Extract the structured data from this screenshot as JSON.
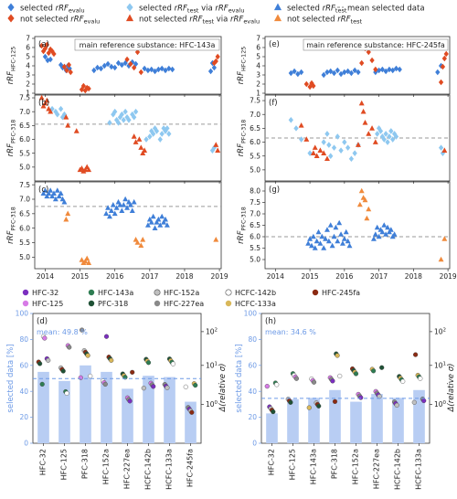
{
  "colors": {
    "blue_dark": "#3f7fd8",
    "blue_light": "#8ec8f0",
    "red": "#e04b22",
    "orange": "#f08a3c",
    "dash": "#9a9a9a",
    "bar": "#b8cdf3",
    "bar_mean": "#6d9ae6"
  },
  "legend": [
    {
      "marker": "diamond",
      "color": "#3f7fd8",
      "label": "selected rRF_evalu"
    },
    {
      "marker": "diamond",
      "color": "#e04b22",
      "label": "not selected rRF_evalu"
    },
    {
      "marker": "diamond",
      "color": "#8ec8f0",
      "label": "selected rRF_test via rRF_evalu"
    },
    {
      "marker": "triangle",
      "color": "#e04b22",
      "label": "not selected rRF_test via rRF_evalu"
    },
    {
      "marker": "triangle",
      "color": "#3f7fd8",
      "label": "selected rRF_test"
    },
    {
      "marker": "triangle",
      "color": "#f08a3c",
      "label": "not selected rRF_test"
    },
    {
      "marker": "dash",
      "color": "#9a9a9a",
      "label": "mean selected data"
    }
  ],
  "ts_xticks": [
    "2014",
    "2015",
    "2016",
    "2017",
    "2018",
    "2019"
  ],
  "chart_data": [
    {
      "panel": "a",
      "type": "scatter",
      "annotation": "main reference substance: HFC-143a",
      "ylabel": "rRF_HFC-125",
      "ylim": [
        0.9,
        7.2
      ],
      "yticks": [
        1,
        2,
        3,
        4,
        5,
        6,
        7
      ],
      "xlim": [
        2013.7,
        2019.05
      ],
      "series": [
        {
          "name": "selected rRF_evalu",
          "marker": "diamond",
          "color": "blue_dark",
          "x": [
            2014.0,
            2014.07,
            2014.15,
            2014.45,
            2014.5,
            2014.55,
            2014.6,
            2014.65,
            2014.7,
            2015.4,
            2015.5,
            2015.6,
            2015.7,
            2015.8,
            2015.9,
            2016.0,
            2016.1,
            2016.2,
            2016.3,
            2016.4,
            2016.5,
            2016.6,
            2016.85,
            2016.95,
            2017.05,
            2017.15,
            2017.25,
            2017.35,
            2017.45,
            2017.55,
            2017.65,
            2018.75,
            2018.8,
            2018.85
          ],
          "y": [
            5.0,
            4.6,
            4.7,
            4.1,
            3.8,
            3.9,
            3.5,
            4.0,
            3.7,
            3.5,
            3.8,
            3.7,
            4.0,
            4.2,
            3.9,
            3.8,
            4.3,
            4.1,
            4.3,
            4.0,
            4.4,
            4.2,
            3.7,
            3.5,
            3.6,
            3.4,
            3.6,
            3.7,
            3.5,
            3.7,
            3.6,
            3.4,
            4.3,
            3.8
          ]
        },
        {
          "name": "not selected rRF_evalu",
          "marker": "diamond",
          "color": "red",
          "x": [
            2013.9,
            2013.95,
            2014.0,
            2014.05,
            2014.1,
            2014.15,
            2014.2,
            2014.25,
            2014.55,
            2014.62,
            2014.68,
            2014.73,
            2015.05,
            2015.1,
            2015.15,
            2015.2,
            2015.25,
            2016.35,
            2016.45,
            2016.55,
            2016.65,
            2016.75,
            2018.85,
            2018.9,
            2018.95
          ],
          "y": [
            6.2,
            5.6,
            5.9,
            6.3,
            5.4,
            5.8,
            5.6,
            5.3,
            3.9,
            3.5,
            4.1,
            3.3,
            1.4,
            1.8,
            1.3,
            1.6,
            1.5,
            4.7,
            4.2,
            3.8,
            5.5,
            3.3,
            4.3,
            4.5,
            5.0
          ]
        }
      ]
    },
    {
      "panel": "b",
      "type": "scatter",
      "ylabel": "rRF_PFC-318",
      "ylim": [
        4.5,
        7.6
      ],
      "yticks": [
        5.0,
        5.5,
        6.0,
        6.5,
        7.0,
        7.5
      ],
      "xlim": [
        2013.7,
        2019.05
      ],
      "mean": 6.55,
      "series": [
        {
          "name": "selected rRF_test via rRF_evalu",
          "marker": "diamond",
          "color": "blue_light",
          "x": [
            2014.2,
            2014.3,
            2014.35,
            2014.45,
            2014.5,
            2014.55,
            2015.85,
            2015.95,
            2016.0,
            2016.05,
            2016.1,
            2016.15,
            2016.2,
            2016.25,
            2016.3,
            2016.35,
            2016.4,
            2016.5,
            2016.55,
            2016.6,
            2016.9,
            2017.0,
            2017.05,
            2017.1,
            2017.15,
            2017.2,
            2017.3,
            2017.35,
            2017.4,
            2017.45,
            2017.5,
            2017.55,
            2018.8,
            2018.85
          ],
          "y": [
            7.1,
            7.0,
            6.9,
            7.1,
            6.8,
            6.9,
            6.6,
            6.9,
            7.0,
            6.7,
            6.6,
            6.8,
            6.9,
            6.7,
            7.0,
            6.8,
            6.7,
            6.9,
            6.8,
            7.0,
            6.0,
            6.1,
            6.3,
            6.2,
            6.4,
            6.3,
            6.0,
            6.2,
            6.4,
            6.3,
            6.4,
            6.2,
            5.6,
            5.7
          ]
        },
        {
          "name": "not selected rRF_test via rRF_evalu",
          "marker": "triangle",
          "color": "red",
          "x": [
            2013.9,
            2013.95,
            2014.0,
            2014.05,
            2014.1,
            2014.15,
            2014.6,
            2014.65,
            2014.9,
            2015.0,
            2015.05,
            2015.1,
            2015.15,
            2015.2,
            2015.25,
            2016.55,
            2016.6,
            2016.7,
            2016.75,
            2016.8,
            2016.85,
            2018.9,
            2018.95
          ],
          "y": [
            7.5,
            7.2,
            7.3,
            7.4,
            7.1,
            7.0,
            6.8,
            6.5,
            6.3,
            4.9,
            4.95,
            4.85,
            4.9,
            5.0,
            4.9,
            6.1,
            5.9,
            6.0,
            5.7,
            5.5,
            5.6,
            5.8,
            5.6
          ]
        }
      ]
    },
    {
      "panel": "c",
      "type": "scatter",
      "ylabel": "rRF_PFC-318",
      "ylim": [
        4.6,
        7.6
      ],
      "yticks": [
        5.0,
        5.5,
        6.0,
        6.5,
        7.0,
        7.5
      ],
      "xlim": [
        2013.7,
        2019.05
      ],
      "mean": 6.75,
      "series": [
        {
          "name": "selected rRF_test",
          "marker": "triangle",
          "color": "blue_dark",
          "x": [
            2013.95,
            2014.0,
            2014.05,
            2014.1,
            2014.15,
            2014.2,
            2014.25,
            2014.3,
            2014.35,
            2014.4,
            2014.45,
            2014.5,
            2014.55,
            2015.75,
            2015.8,
            2015.85,
            2015.9,
            2015.95,
            2016.0,
            2016.05,
            2016.1,
            2016.15,
            2016.2,
            2016.25,
            2016.3,
            2016.35,
            2016.4,
            2016.45,
            2016.5,
            2016.55,
            2016.95,
            2017.0,
            2017.05,
            2017.1,
            2017.15,
            2017.2,
            2017.25,
            2017.3,
            2017.35,
            2017.4,
            2017.45,
            2017.5
          ],
          "y": [
            7.2,
            7.3,
            7.1,
            7.2,
            7.3,
            7.1,
            7.2,
            7.0,
            7.3,
            7.1,
            7.2,
            7.0,
            6.9,
            6.5,
            6.7,
            6.4,
            6.6,
            6.8,
            6.5,
            6.7,
            6.9,
            6.8,
            6.6,
            6.8,
            7.0,
            6.7,
            6.9,
            6.8,
            6.6,
            6.9,
            6.1,
            6.3,
            6.2,
            6.4,
            6.0,
            6.2,
            6.3,
            6.1,
            6.4,
            6.2,
            6.3,
            6.1
          ]
        },
        {
          "name": "not selected rRF_test",
          "marker": "triangle",
          "color": "orange",
          "x": [
            2014.6,
            2014.65,
            2015.05,
            2015.1,
            2015.15,
            2015.2,
            2015.25,
            2016.6,
            2016.65,
            2016.75,
            2016.8,
            2018.9
          ],
          "y": [
            6.3,
            6.5,
            4.9,
            4.8,
            4.85,
            4.95,
            4.8,
            5.6,
            5.5,
            5.4,
            5.6,
            5.6
          ]
        }
      ]
    },
    {
      "panel": "e",
      "type": "scatter",
      "annotation": "main reference substance: HFC-245fa",
      "ylabel": "rRF_HFC-125",
      "ylim": [
        0.9,
        7.2
      ],
      "yticks": [
        1,
        2,
        3,
        4,
        5,
        6,
        7
      ],
      "xlim": [
        2013.7,
        2019.05
      ],
      "series": [
        {
          "name": "selected rRF_evalu",
          "marker": "diamond",
          "color": "blue_dark",
          "x": [
            2014.45,
            2014.55,
            2014.65,
            2014.75,
            2015.4,
            2015.5,
            2015.6,
            2015.7,
            2015.8,
            2015.9,
            2016.0,
            2016.1,
            2016.2,
            2016.3,
            2016.4,
            2016.9,
            2017.0,
            2017.1,
            2017.2,
            2017.3,
            2017.4,
            2017.5,
            2017.6,
            2018.7,
            2018.8
          ],
          "y": [
            3.2,
            3.4,
            3.1,
            3.3,
            3.0,
            3.3,
            3.4,
            3.2,
            3.5,
            3.1,
            3.3,
            3.4,
            3.2,
            3.5,
            3.3,
            3.3,
            3.5,
            3.6,
            3.4,
            3.6,
            3.5,
            3.7,
            3.6,
            3.3,
            4.0
          ]
        },
        {
          "name": "not selected rRF_evalu",
          "marker": "diamond",
          "color": "red",
          "x": [
            2014.9,
            2015.0,
            2015.05,
            2015.1,
            2016.5,
            2016.6,
            2016.7,
            2016.8,
            2016.9,
            2018.8,
            2018.85,
            2018.9,
            2018.95
          ],
          "y": [
            2.0,
            1.7,
            2.1,
            1.8,
            4.3,
            5.9,
            5.5,
            4.6,
            3.6,
            2.2,
            3.9,
            4.8,
            5.3
          ]
        }
      ]
    },
    {
      "panel": "f",
      "type": "scatter",
      "ylabel": "rRF_PFC-318",
      "ylim": [
        4.6,
        7.7
      ],
      "yticks": [
        5.0,
        5.5,
        6.0,
        6.5,
        7.0,
        7.5
      ],
      "xlim": [
        2013.7,
        2019.05
      ],
      "mean": 6.15,
      "series": [
        {
          "name": "selected rRF_test via rRF_evalu",
          "marker": "diamond",
          "color": "blue_light",
          "x": [
            2014.45,
            2014.6,
            2014.75,
            2015.0,
            2015.4,
            2015.5,
            2015.55,
            2015.6,
            2015.7,
            2015.8,
            2015.9,
            2016.0,
            2016.1,
            2016.2,
            2016.3,
            2016.4,
            2016.95,
            2017.0,
            2017.05,
            2017.1,
            2017.15,
            2017.2,
            2017.25,
            2017.3,
            2017.35,
            2017.4,
            2017.45,
            2017.5,
            2018.8,
            2018.85
          ],
          "y": [
            6.8,
            6.5,
            6.1,
            5.6,
            6.0,
            6.3,
            5.9,
            5.5,
            5.8,
            6.2,
            5.7,
            6.0,
            5.8,
            5.4,
            5.6,
            5.9,
            6.3,
            6.5,
            6.4,
            6.2,
            6.1,
            6.3,
            6.0,
            6.2,
            6.4,
            6.1,
            6.3,
            6.2,
            5.8,
            5.6
          ]
        },
        {
          "name": "not selected rRF_test via rRF_evalu",
          "marker": "triangle",
          "color": "red",
          "x": [
            2014.75,
            2014.9,
            2015.1,
            2015.15,
            2015.2,
            2015.3,
            2015.4,
            2015.5,
            2016.4,
            2016.5,
            2016.55,
            2016.6,
            2016.7,
            2016.8,
            2016.9,
            2018.9
          ],
          "y": [
            6.6,
            6.1,
            5.6,
            5.8,
            5.5,
            5.7,
            5.6,
            5.4,
            5.9,
            7.4,
            7.1,
            6.7,
            6.3,
            6.5,
            6.0,
            5.7
          ]
        }
      ]
    },
    {
      "panel": "g",
      "type": "scatter",
      "ylabel": "rRF_PFC-318",
      "ylim": [
        4.6,
        8.4
      ],
      "yticks": [
        5.0,
        5.5,
        6.0,
        6.5,
        7.0,
        7.5,
        8.0
      ],
      "xlim": [
        2013.7,
        2019.05
      ],
      "mean": 6.0,
      "series": [
        {
          "name": "selected rRF_test",
          "marker": "triangle",
          "color": "blue_dark",
          "x": [
            2014.95,
            2015.0,
            2015.05,
            2015.1,
            2015.15,
            2015.2,
            2015.25,
            2015.3,
            2015.35,
            2015.4,
            2015.45,
            2015.5,
            2015.55,
            2015.6,
            2015.65,
            2015.7,
            2015.75,
            2015.8,
            2015.85,
            2015.9,
            2015.95,
            2016.0,
            2016.05,
            2016.1,
            2016.15,
            2016.85,
            2016.9,
            2016.95,
            2017.0,
            2017.05,
            2017.1,
            2017.15,
            2017.2,
            2017.25,
            2017.3,
            2017.35,
            2017.4,
            2017.45
          ],
          "y": [
            5.7,
            5.9,
            5.6,
            6.0,
            5.5,
            5.8,
            6.2,
            5.7,
            6.0,
            5.5,
            5.9,
            6.3,
            5.8,
            6.5,
            5.6,
            6.0,
            6.4,
            5.8,
            6.6,
            6.1,
            5.7,
            5.9,
            6.2,
            5.8,
            5.6,
            5.9,
            6.1,
            6.4,
            6.0,
            6.3,
            6.2,
            6.5,
            6.1,
            6.4,
            6.2,
            6.3,
            6.0,
            6.1
          ]
        },
        {
          "name": "not selected rRF_test",
          "marker": "triangle",
          "color": "orange",
          "x": [
            2016.45,
            2016.5,
            2016.55,
            2016.6,
            2016.65,
            2016.7,
            2018.8,
            2018.9
          ],
          "y": [
            7.4,
            8.0,
            7.7,
            7.6,
            6.8,
            7.2,
            5.0,
            5.9
          ]
        }
      ]
    },
    {
      "panel": "d",
      "type": "bar",
      "ylabel": "selected data [%]",
      "ylabel2": "Δ(relative σ)",
      "mean_label": "mean:  49.8 %",
      "mean": 49.8,
      "ylim": [
        0,
        100
      ],
      "yticks": [
        0,
        20,
        40,
        60,
        80,
        100
      ],
      "categories": [
        "HFC-32",
        "HFC-125",
        "PFC-318",
        "HFC-152a",
        "HFC-227ea",
        "HCFC-142b",
        "HCFC-133a",
        "HFC-245fa"
      ],
      "values": [
        55,
        48,
        60,
        55,
        42,
        52,
        51,
        32
      ]
    },
    {
      "panel": "h",
      "type": "bar",
      "ylabel": "selected data [%]",
      "ylabel2": "Δ(relative σ)",
      "mean_label": "mean:  34.6 %",
      "mean": 34.6,
      "ylim": [
        0,
        100
      ],
      "yticks": [
        0,
        20,
        40,
        60,
        80,
        100
      ],
      "categories": [
        "HFC-32",
        "HFC-125",
        "HFC-143a",
        "PFC-318",
        "HFC-152a",
        "HFC-227ea",
        "HCFC-142b",
        "HCFC-133a"
      ],
      "values": [
        23,
        34,
        35,
        41,
        32,
        38,
        35,
        41
      ]
    }
  ],
  "bar_legend": [
    {
      "label": "HFC-32",
      "color": "#7b2fbf",
      "ring": false
    },
    {
      "label": "HFC-143a",
      "color": "#2e7d52",
      "ring": false
    },
    {
      "label": "HFC-152a",
      "color": "#c0c0c0",
      "ring": true
    },
    {
      "label": "HCFC-142b",
      "color": "#ffffff",
      "ring": true
    },
    {
      "label": "HFC-245fa",
      "color": "#8b2a12",
      "ring": false
    },
    {
      "label": "HFC-125",
      "color": "#d77be6",
      "ring": false
    },
    {
      "label": "PFC-318",
      "color": "#1f5135",
      "ring": false
    },
    {
      "label": "HFC-227ea",
      "color": "#8a8a8a",
      "ring": false
    },
    {
      "label": "HCFC-133a",
      "color": "#d9b85a",
      "ring": false
    }
  ],
  "sigma_axis": {
    "ticks": [
      "10^{0}",
      "10^{1}",
      "10^{2}"
    ]
  }
}
